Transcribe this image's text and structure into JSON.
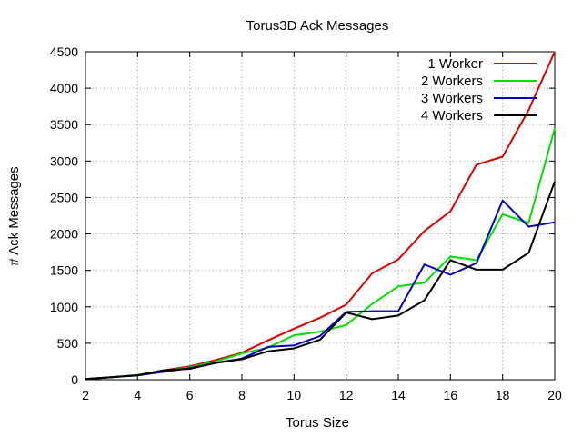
{
  "chart_data": {
    "type": "line",
    "title": "Torus3D Ack Messages",
    "xlabel": "Torus Size",
    "ylabel": "# Ack Messages",
    "xlim": [
      2,
      20
    ],
    "ylim": [
      0,
      4500
    ],
    "xticks": [
      2,
      4,
      6,
      8,
      10,
      12,
      14,
      16,
      18,
      20
    ],
    "yticks": [
      0,
      500,
      1000,
      1500,
      2000,
      2500,
      3000,
      3500,
      4000,
      4500
    ],
    "grid": true,
    "legend_position": "top-right",
    "x": [
      2,
      3,
      4,
      5,
      6,
      7,
      8,
      9,
      10,
      11,
      12,
      13,
      14,
      15,
      16,
      17,
      18,
      19,
      20
    ],
    "series": [
      {
        "name": "1 Worker",
        "color": "#e00000",
        "values": [
          10,
          35,
          65,
          130,
          185,
          270,
          370,
          540,
          700,
          850,
          1030,
          1460,
          1650,
          2040,
          2310,
          2950,
          3060,
          3700,
          4500
        ]
      },
      {
        "name": "2 Workers",
        "color": "#00e000",
        "values": [
          10,
          35,
          65,
          120,
          170,
          250,
          360,
          440,
          610,
          660,
          750,
          1040,
          1280,
          1330,
          1690,
          1640,
          2270,
          2150,
          3450
        ]
      },
      {
        "name": "3 Workers",
        "color": "#0000c8",
        "values": [
          10,
          35,
          60,
          110,
          160,
          230,
          290,
          450,
          470,
          600,
          930,
          940,
          940,
          1580,
          1440,
          1600,
          2460,
          2100,
          2160
        ]
      },
      {
        "name": "4 Workers",
        "color": "#000000",
        "values": [
          10,
          35,
          60,
          130,
          150,
          230,
          280,
          390,
          430,
          550,
          920,
          830,
          880,
          1090,
          1640,
          1510,
          1510,
          1740,
          2720
        ]
      }
    ]
  }
}
